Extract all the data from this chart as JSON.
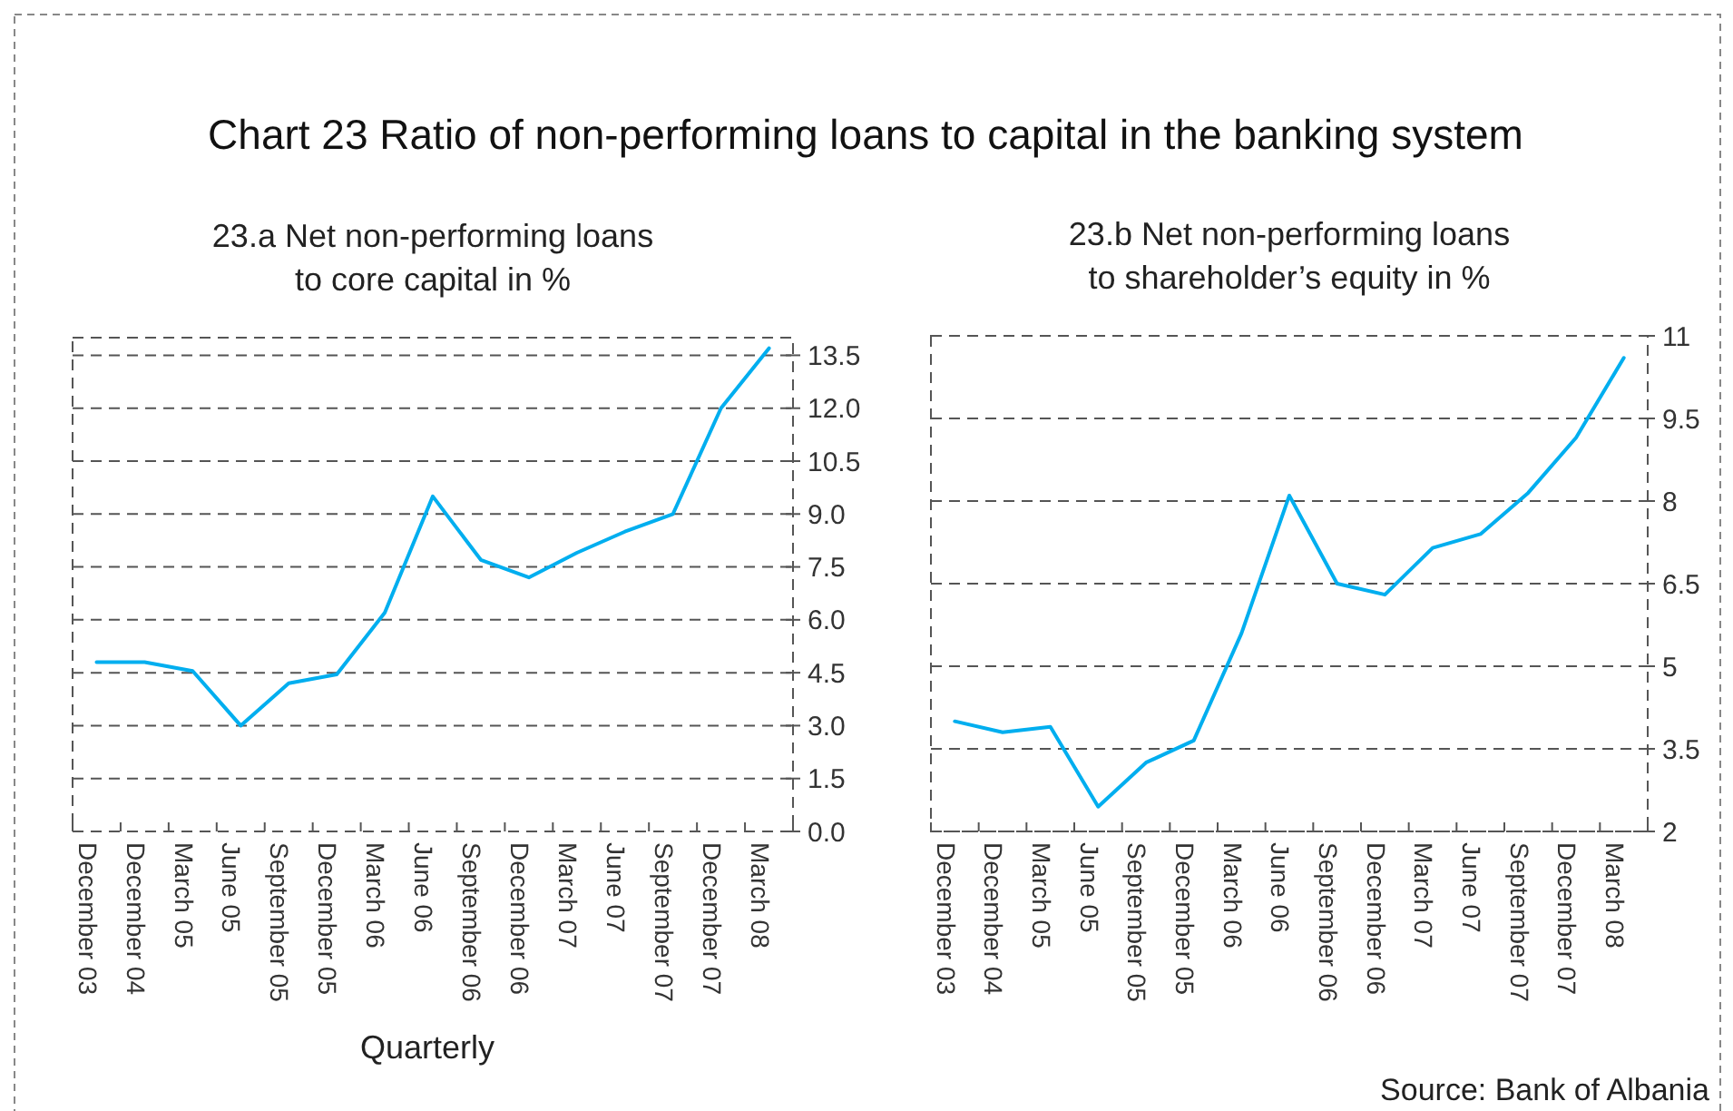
{
  "chart_data": [
    {
      "type": "line",
      "title": "23.a Net non-performing loans\nto core capital in %",
      "xlabel": "Quarterly",
      "annotations": [
        "Chart 23 Ratio of non-performing loans to capital in the banking system"
      ],
      "categories": [
        "December 03",
        "December 04",
        "March 05",
        "June 05",
        "September 05",
        "December 05",
        "March 06",
        "June 06",
        "September 06",
        "December 06",
        "March 07",
        "June 07",
        "September 07",
        "December 07",
        "March 08"
      ],
      "series": [
        {
          "color": "#00aeef",
          "values": [
            4.8,
            4.8,
            4.55,
            3.0,
            4.2,
            4.45,
            6.2,
            9.5,
            7.7,
            7.2,
            7.9,
            8.5,
            9.0,
            12.0,
            13.7
          ]
        }
      ],
      "ylim": [
        0,
        14
      ],
      "yticks": [
        {
          "value": 0,
          "label": "0.0"
        },
        {
          "value": 1.5,
          "label": "1.5"
        },
        {
          "value": 3,
          "label": "3.0"
        },
        {
          "value": 4.5,
          "label": "4.5"
        },
        {
          "value": 6,
          "label": "6.0"
        },
        {
          "value": 7.5,
          "label": "7.5"
        },
        {
          "value": 9,
          "label": "9.0"
        },
        {
          "value": 10.5,
          "label": "10.5"
        },
        {
          "value": 12,
          "label": "12.0"
        },
        {
          "value": 13.5,
          "label": "13.5"
        }
      ],
      "grid": "y",
      "marker": "none",
      "line_style": "solid"
    },
    {
      "type": "line",
      "title": "23.b Net non-performing loans\nto shareholder’s equity in %",
      "annotations": [
        "Source: Bank of Albania"
      ],
      "categories": [
        "December 03",
        "December 04",
        "March 05",
        "June 05",
        "September 05",
        "December 05",
        "March 06",
        "June 06",
        "September 06",
        "December 06",
        "March 07",
        "June 07",
        "September 07",
        "December 07",
        "March 08"
      ],
      "series": [
        {
          "color": "#00aeef",
          "values": [
            4.0,
            3.8,
            3.9,
            2.45,
            3.25,
            3.65,
            5.6,
            8.1,
            6.5,
            6.3,
            7.15,
            7.4,
            8.15,
            9.15,
            10.6
          ]
        }
      ],
      "ylim": [
        2,
        11
      ],
      "yticks": [
        2,
        3.5,
        5,
        6.5,
        8,
        9.5,
        11
      ],
      "grid": "y",
      "marker": "none",
      "line_style": "solid"
    }
  ]
}
